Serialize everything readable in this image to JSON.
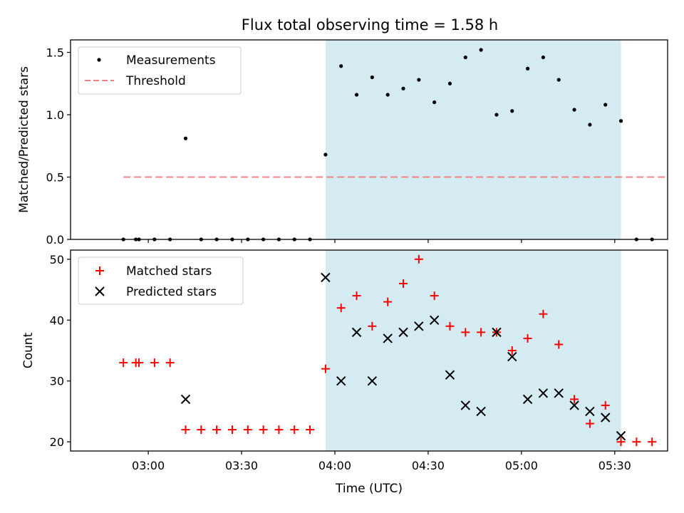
{
  "chart_data": [
    {
      "type": "scatter",
      "title": "Flux total observing time = 1.58 h",
      "xlabel": "",
      "ylabel": "Matched/Predicted stars",
      "ylim": [
        0,
        1.6
      ],
      "yticks": [
        "0.0",
        "0.5",
        "1.0",
        "1.5"
      ],
      "x_time_range": [
        "02:35",
        "05:47"
      ],
      "shaded_interval": [
        "03:57",
        "05:32"
      ],
      "shade_color": "#add8e6",
      "legend": "top-left",
      "series": [
        {
          "name": "Measurements",
          "marker": "dot",
          "color": "#000000",
          "x": [
            "02:52",
            "02:56",
            "02:57",
            "03:02",
            "03:07",
            "03:12",
            "03:17",
            "03:22",
            "03:27",
            "03:32",
            "03:37",
            "03:42",
            "03:47",
            "03:52",
            "03:57",
            "04:02",
            "04:07",
            "04:12",
            "04:17",
            "04:22",
            "04:27",
            "04:32",
            "04:37",
            "04:42",
            "04:47",
            "04:52",
            "04:57",
            "05:02",
            "05:07",
            "05:12",
            "05:17",
            "05:22",
            "05:27",
            "05:32",
            "05:37",
            "05:42"
          ],
          "y": [
            0,
            0,
            0,
            0,
            0,
            0.81,
            0,
            0,
            0,
            0,
            0,
            0,
            0,
            0,
            0.68,
            1.39,
            1.16,
            1.3,
            1.16,
            1.21,
            1.28,
            1.1,
            1.25,
            1.46,
            1.52,
            1.0,
            1.03,
            1.37,
            1.46,
            1.28,
            1.04,
            0.92,
            1.08,
            0.95,
            0,
            0
          ]
        },
        {
          "name": "Threshold",
          "style": "dashed",
          "color": "#f08080",
          "x": [
            "02:52",
            "05:47"
          ],
          "y": [
            0.5,
            0.5
          ]
        }
      ]
    },
    {
      "type": "scatter",
      "title": "",
      "xlabel": "Time (UTC)",
      "ylabel": "Count",
      "ylim": [
        18.5,
        51.5
      ],
      "yticks": [
        "20",
        "30",
        "40",
        "50"
      ],
      "x_time_range": [
        "02:35",
        "05:47"
      ],
      "xticks": [
        "03:00",
        "03:30",
        "04:00",
        "04:30",
        "05:00",
        "05:30"
      ],
      "shaded_interval": [
        "03:57",
        "05:32"
      ],
      "shade_color": "#add8e6",
      "legend": "top-left",
      "series": [
        {
          "name": "Matched stars",
          "marker": "plus",
          "color": "#ff0000",
          "x": [
            "02:52",
            "02:56",
            "02:57",
            "03:02",
            "03:07",
            "03:12",
            "03:17",
            "03:22",
            "03:27",
            "03:32",
            "03:37",
            "03:42",
            "03:47",
            "03:52",
            "03:57",
            "04:02",
            "04:07",
            "04:12",
            "04:17",
            "04:22",
            "04:27",
            "04:32",
            "04:37",
            "04:42",
            "04:47",
            "04:52",
            "04:57",
            "05:02",
            "05:07",
            "05:12",
            "05:17",
            "05:22",
            "05:27",
            "05:32",
            "05:37",
            "05:42"
          ],
          "y": [
            33,
            33,
            33,
            33,
            33,
            22,
            22,
            22,
            22,
            22,
            22,
            22,
            22,
            22,
            32,
            42,
            44,
            39,
            43,
            46,
            50,
            44,
            39,
            38,
            38,
            38,
            35,
            37,
            41,
            36,
            27,
            23,
            26,
            20,
            20,
            20
          ]
        },
        {
          "name": "Predicted stars",
          "marker": "x",
          "color": "#000000",
          "x": [
            "03:12",
            "03:57",
            "04:02",
            "04:07",
            "04:12",
            "04:17",
            "04:22",
            "04:27",
            "04:32",
            "04:37",
            "04:42",
            "04:47",
            "04:52",
            "04:57",
            "05:02",
            "05:07",
            "05:12",
            "05:17",
            "05:22",
            "05:27",
            "05:32"
          ],
          "y": [
            27,
            47,
            30,
            38,
            30,
            37,
            38,
            39,
            40,
            31,
            26,
            25,
            38,
            34,
            27,
            28,
            28,
            26,
            25,
            24,
            21
          ]
        }
      ]
    }
  ]
}
